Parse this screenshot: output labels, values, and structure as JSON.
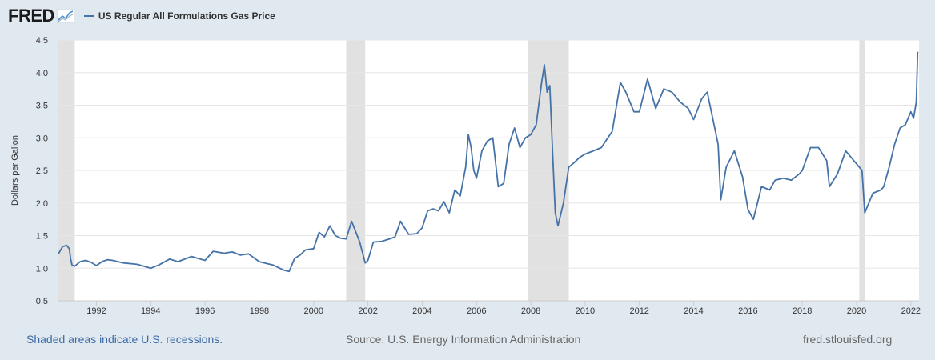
{
  "header": {
    "logo_text": "FRED",
    "series_label": "US Regular All Formulations Gas Price"
  },
  "footer": {
    "recessions_note": "Shaded areas indicate U.S. recessions.",
    "source": "Source: U.S. Energy Information Administration",
    "site": "fred.stlouisfed.org"
  },
  "colors": {
    "series": "#4572a7",
    "recession": "#e1e1e1",
    "background": "#e1e9f0"
  },
  "chart_data": {
    "type": "line",
    "title": "US Regular All Formulations Gas Price",
    "xlabel": "",
    "ylabel": "Dollars per Gallon",
    "ylim": [
      0.5,
      4.5
    ],
    "xlim": [
      1990.6,
      2022.3
    ],
    "yticks": [
      "0.5",
      "1.0",
      "1.5",
      "2.0",
      "2.5",
      "3.0",
      "3.5",
      "4.0",
      "4.5"
    ],
    "xticks": [
      "1992",
      "1994",
      "1996",
      "1998",
      "2000",
      "2002",
      "2004",
      "2006",
      "2008",
      "2010",
      "2012",
      "2014",
      "2016",
      "2018",
      "2020",
      "2022"
    ],
    "grid": true,
    "legend": "top-left",
    "recessions": [
      [
        1990.6,
        1991.2
      ],
      [
        2001.2,
        2001.9
      ],
      [
        2007.9,
        2009.4
      ],
      [
        2020.1,
        2020.3
      ]
    ],
    "series": [
      {
        "name": "US Regular All Formulations Gas Price",
        "x": [
          1990.6,
          1990.75,
          1990.9,
          1991.0,
          1991.05,
          1991.1,
          1991.2,
          1991.4,
          1991.6,
          1991.8,
          1992.0,
          1992.2,
          1992.4,
          1992.6,
          1992.8,
          1993.0,
          1993.5,
          1994.0,
          1994.3,
          1994.7,
          1995.0,
          1995.5,
          1996.0,
          1996.3,
          1996.7,
          1997.0,
          1997.3,
          1997.6,
          1998.0,
          1998.5,
          1998.9,
          1999.1,
          1999.3,
          1999.5,
          1999.7,
          2000.0,
          2000.2,
          2000.4,
          2000.6,
          2000.8,
          2001.0,
          2001.2,
          2001.4,
          2001.7,
          2001.9,
          2002.0,
          2002.2,
          2002.5,
          2002.8,
          2003.0,
          2003.2,
          2003.5,
          2003.8,
          2004.0,
          2004.2,
          2004.4,
          2004.6,
          2004.8,
          2005.0,
          2005.2,
          2005.4,
          2005.6,
          2005.7,
          2005.8,
          2005.9,
          2006.0,
          2006.2,
          2006.4,
          2006.6,
          2006.8,
          2007.0,
          2007.2,
          2007.4,
          2007.6,
          2007.8,
          2008.0,
          2008.2,
          2008.4,
          2008.5,
          2008.6,
          2008.7,
          2008.8,
          2008.9,
          2009.0,
          2009.2,
          2009.4,
          2009.6,
          2009.8,
          2010.0,
          2010.3,
          2010.6,
          2011.0,
          2011.3,
          2011.5,
          2011.8,
          2012.0,
          2012.3,
          2012.6,
          2012.9,
          2013.2,
          2013.5,
          2013.8,
          2014.0,
          2014.3,
          2014.5,
          2014.7,
          2014.9,
          2015.0,
          2015.2,
          2015.5,
          2015.8,
          2016.0,
          2016.2,
          2016.5,
          2016.8,
          2017.0,
          2017.3,
          2017.6,
          2017.9,
          2018.0,
          2018.3,
          2018.6,
          2018.9,
          2019.0,
          2019.3,
          2019.6,
          2019.9,
          2020.0,
          2020.2,
          2020.3,
          2020.6,
          2020.9,
          2021.0,
          2021.2,
          2021.4,
          2021.6,
          2021.8,
          2022.0,
          2022.1,
          2022.2,
          2022.25
        ],
        "values": [
          1.22,
          1.33,
          1.35,
          1.3,
          1.14,
          1.05,
          1.03,
          1.1,
          1.12,
          1.09,
          1.04,
          1.1,
          1.13,
          1.12,
          1.1,
          1.08,
          1.06,
          1.0,
          1.05,
          1.14,
          1.1,
          1.18,
          1.12,
          1.26,
          1.23,
          1.25,
          1.2,
          1.22,
          1.1,
          1.05,
          0.97,
          0.95,
          1.15,
          1.2,
          1.28,
          1.3,
          1.55,
          1.48,
          1.65,
          1.5,
          1.46,
          1.45,
          1.72,
          1.4,
          1.08,
          1.12,
          1.4,
          1.41,
          1.45,
          1.48,
          1.72,
          1.52,
          1.53,
          1.62,
          1.88,
          1.91,
          1.88,
          2.02,
          1.85,
          2.2,
          2.11,
          2.55,
          3.05,
          2.85,
          2.5,
          2.38,
          2.8,
          2.95,
          3.0,
          2.25,
          2.3,
          2.9,
          3.15,
          2.85,
          3.0,
          3.05,
          3.2,
          3.85,
          4.12,
          3.7,
          3.8,
          2.8,
          1.85,
          1.65,
          2.0,
          2.55,
          2.62,
          2.7,
          2.75,
          2.8,
          2.85,
          3.1,
          3.85,
          3.7,
          3.4,
          3.4,
          3.9,
          3.45,
          3.75,
          3.7,
          3.55,
          3.45,
          3.28,
          3.6,
          3.7,
          3.3,
          2.9,
          2.05,
          2.55,
          2.8,
          2.4,
          1.9,
          1.75,
          2.25,
          2.2,
          2.35,
          2.38,
          2.35,
          2.45,
          2.5,
          2.85,
          2.85,
          2.65,
          2.25,
          2.45,
          2.8,
          2.65,
          2.6,
          2.5,
          1.85,
          2.15,
          2.2,
          2.25,
          2.55,
          2.9,
          3.15,
          3.2,
          3.4,
          3.3,
          3.55,
          4.32
        ]
      }
    ]
  }
}
